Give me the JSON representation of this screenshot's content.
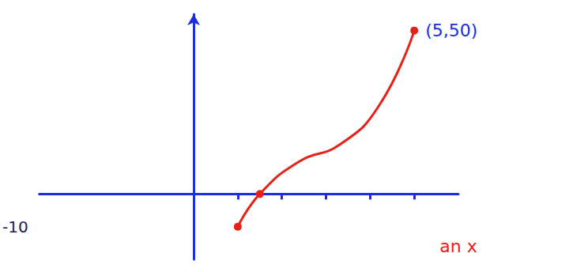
{
  "chart_data": {
    "type": "line",
    "x": [
      1,
      1.5,
      2.4,
      3.3,
      4.2,
      5
    ],
    "values": [
      -10,
      0,
      10,
      15,
      27,
      50
    ],
    "color": "#e8201a",
    "marker": "circle",
    "line_style": "solid",
    "xlim": [
      -3.5,
      6
    ],
    "ylim": [
      -20,
      55
    ],
    "xticks": [
      1,
      2,
      3,
      4,
      5
    ],
    "yticks": [
      -10
    ],
    "tick_labels": "y",
    "grid": false,
    "annotations": [
      {
        "text": "(5,50)",
        "x": 5,
        "y": 50,
        "color": "#1a2ee0"
      },
      {
        "text": "an x",
        "x": 6,
        "y": -16,
        "color": "#e8201a"
      }
    ]
  }
}
